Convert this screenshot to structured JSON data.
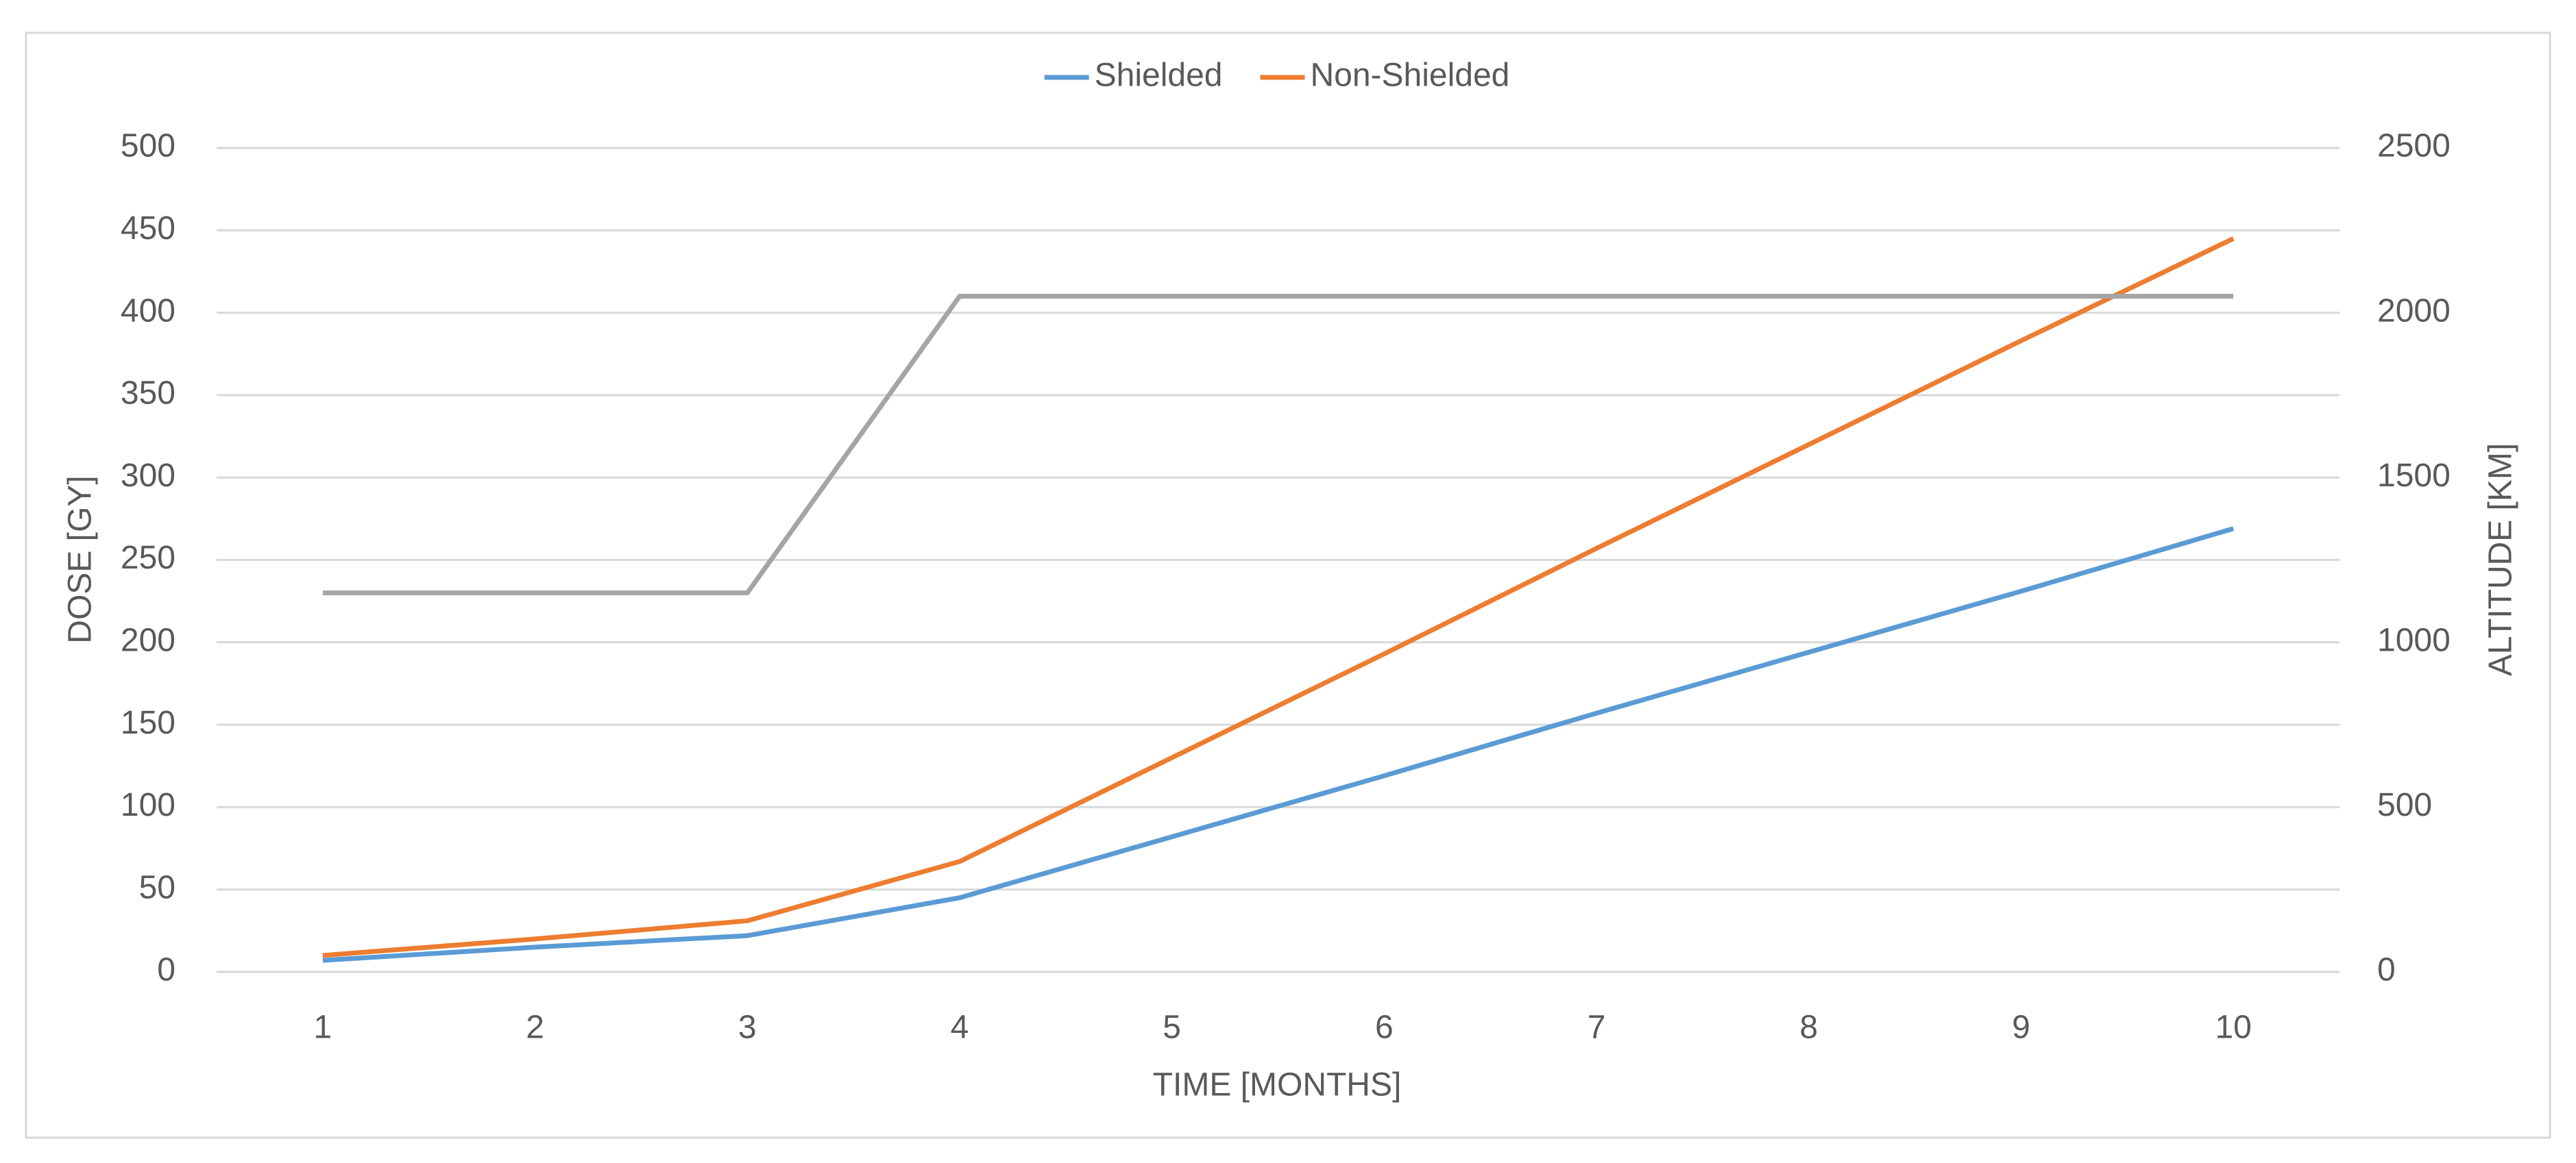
{
  "chart_data": {
    "type": "line",
    "x_label": "TIME [MONTHS]",
    "y_label": "DOSE [GY]",
    "y2_label": "ALTITUDE [KM]",
    "categories": [
      "1",
      "2",
      "3",
      "4",
      "5",
      "6",
      "7",
      "8",
      "9",
      "10"
    ],
    "series": [
      {
        "name": "Shielded",
        "color": "#5b9bd5",
        "values": [
          7,
          15,
          22,
          45,
          82,
          119,
          157,
          194,
          231,
          269
        ]
      },
      {
        "name": "Non-Shielded",
        "color": "#ed7d31",
        "values": [
          10,
          20,
          31,
          67,
          130,
          193,
          257,
          320,
          383,
          445
        ]
      },
      {
        "color": "#a5a5a5",
        "axis": "y2",
        "values": [
          1150,
          1150,
          1150,
          2050,
          2050,
          2050,
          2050,
          2050,
          2050,
          2050
        ]
      }
    ],
    "ylim": [
      0,
      500
    ],
    "yticks": [
      0,
      50,
      100,
      150,
      200,
      250,
      300,
      350,
      400,
      450,
      500
    ],
    "y2lim": [
      0,
      2500
    ],
    "y2ticks": [
      0,
      500,
      1000,
      1500,
      2000,
      2500
    ],
    "grid": true,
    "legend": "top"
  }
}
